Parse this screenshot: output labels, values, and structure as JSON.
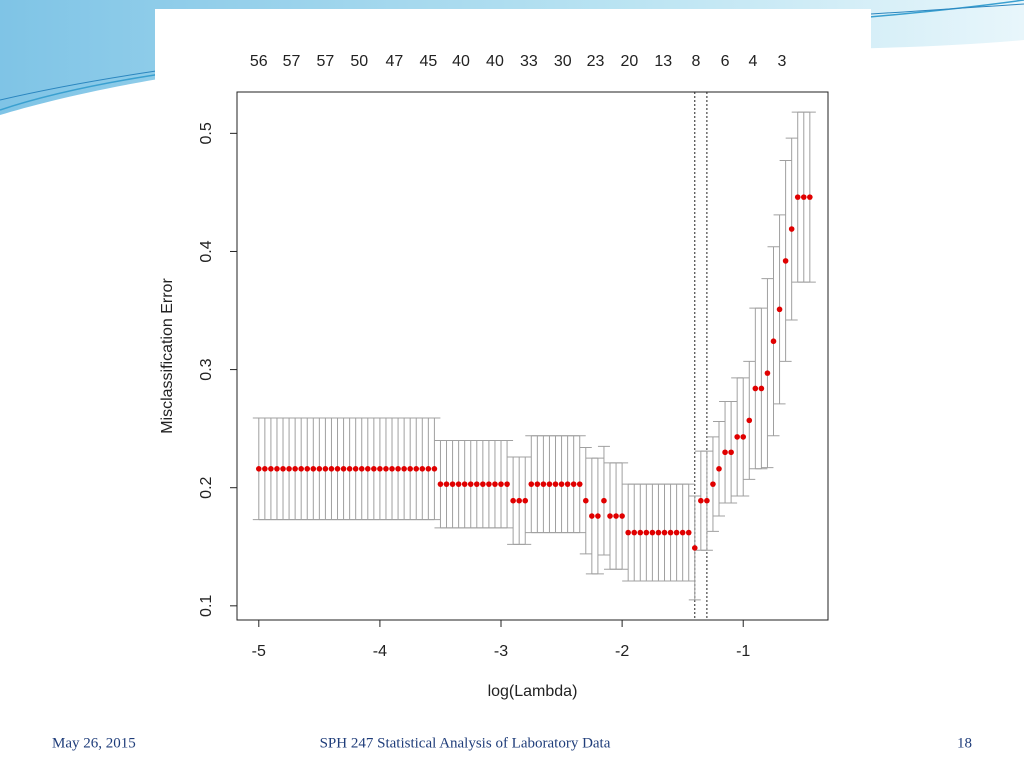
{
  "slide": {
    "footer_date": "May 26, 2015",
    "footer_text": "SPH 247 Statistical Analysis of Laboratory Data",
    "page_number": "18"
  },
  "chart_data": {
    "type": "errorbar",
    "x_label": "log(Lambda)",
    "y_label": "Misclassification Error",
    "xlim": [
      -5.18,
      -0.3
    ],
    "ylim": [
      0.088,
      0.535
    ],
    "xticks": [
      -5,
      -4,
      -3,
      -2,
      -1
    ],
    "yticks": [
      0.1,
      0.2,
      0.3,
      0.4,
      0.5
    ],
    "top_ticks": [
      {
        "value": -5,
        "label": "56"
      },
      {
        "value": -4.73,
        "label": "57"
      },
      {
        "value": -4.45,
        "label": "57"
      },
      {
        "value": -4.17,
        "label": "50"
      },
      {
        "value": -3.88,
        "label": "47"
      },
      {
        "value": -3.6,
        "label": "45"
      },
      {
        "value": -3.33,
        "label": "40"
      },
      {
        "value": -3.05,
        "label": "40"
      },
      {
        "value": -2.77,
        "label": "33"
      },
      {
        "value": -2.49,
        "label": "30"
      },
      {
        "value": -2.22,
        "label": "23"
      },
      {
        "value": -1.94,
        "label": "20"
      },
      {
        "value": -1.66,
        "label": "13"
      },
      {
        "value": -1.39,
        "label": "8"
      },
      {
        "value": -1.15,
        "label": "6"
      },
      {
        "value": -0.92,
        "label": "4"
      },
      {
        "value": -0.68,
        "label": "3"
      }
    ],
    "vlines": [
      -1.4,
      -1.3
    ],
    "point_color": "#e00000",
    "bar_color": "#a0a0a0",
    "x": [
      -5,
      -4.95,
      -4.9,
      -4.85,
      -4.8,
      -4.75,
      -4.7,
      -4.65,
      -4.6,
      -4.55,
      -4.5,
      -4.45,
      -4.4,
      -4.35,
      -4.3,
      -4.25,
      -4.2,
      -4.15,
      -4.1,
      -4.05,
      -4,
      -3.95,
      -3.9,
      -3.85,
      -3.8,
      -3.75,
      -3.7,
      -3.65,
      -3.6,
      -3.55,
      -3.5,
      -3.45,
      -3.4,
      -3.35,
      -3.3,
      -3.25,
      -3.2,
      -3.15,
      -3.1,
      -3.05,
      -3,
      -2.95,
      -2.9,
      -2.85,
      -2.8,
      -2.75,
      -2.7,
      -2.65,
      -2.6,
      -2.55,
      -2.5,
      -2.45,
      -2.4,
      -2.35,
      -2.3,
      -2.25,
      -2.2,
      -2.15,
      -2.1,
      -2.05,
      -2,
      -1.95,
      -1.9,
      -1.85,
      -1.8,
      -1.75,
      -1.7,
      -1.65,
      -1.6,
      -1.55,
      -1.5,
      -1.45,
      -1.4,
      -1.35,
      -1.3,
      -1.25,
      -1.2,
      -1.15,
      -1.1,
      -1.05,
      -1,
      -0.95,
      -0.9,
      -0.85,
      -0.8,
      -0.75,
      -0.7,
      -0.65,
      -0.6,
      -0.55,
      -0.5,
      -0.45
    ],
    "values": [
      0.216,
      0.216,
      0.216,
      0.216,
      0.216,
      0.216,
      0.216,
      0.216,
      0.216,
      0.216,
      0.216,
      0.216,
      0.216,
      0.216,
      0.216,
      0.216,
      0.216,
      0.216,
      0.216,
      0.216,
      0.216,
      0.216,
      0.216,
      0.216,
      0.216,
      0.216,
      0.216,
      0.216,
      0.216,
      0.216,
      0.203,
      0.203,
      0.203,
      0.203,
      0.203,
      0.203,
      0.203,
      0.203,
      0.203,
      0.203,
      0.203,
      0.203,
      0.189,
      0.189,
      0.189,
      0.203,
      0.203,
      0.203,
      0.203,
      0.203,
      0.203,
      0.203,
      0.203,
      0.203,
      0.189,
      0.176,
      0.176,
      0.189,
      0.176,
      0.176,
      0.176,
      0.162,
      0.162,
      0.162,
      0.162,
      0.162,
      0.162,
      0.162,
      0.162,
      0.162,
      0.162,
      0.162,
      0.149,
      0.189,
      0.189,
      0.203,
      0.216,
      0.23,
      0.23,
      0.243,
      0.243,
      0.257,
      0.284,
      0.284,
      0.297,
      0.324,
      0.351,
      0.392,
      0.419,
      0.446,
      0.446,
      0.446
    ],
    "errors": [
      0.043,
      0.043,
      0.043,
      0.043,
      0.043,
      0.043,
      0.043,
      0.043,
      0.043,
      0.043,
      0.043,
      0.043,
      0.043,
      0.043,
      0.043,
      0.043,
      0.043,
      0.043,
      0.043,
      0.043,
      0.043,
      0.043,
      0.043,
      0.043,
      0.043,
      0.043,
      0.043,
      0.043,
      0.043,
      0.043,
      0.037,
      0.037,
      0.037,
      0.037,
      0.037,
      0.037,
      0.037,
      0.037,
      0.037,
      0.037,
      0.037,
      0.037,
      0.037,
      0.037,
      0.037,
      0.041,
      0.041,
      0.041,
      0.041,
      0.041,
      0.041,
      0.041,
      0.041,
      0.041,
      0.045,
      0.049,
      0.049,
      0.046,
      0.045,
      0.045,
      0.045,
      0.041,
      0.041,
      0.041,
      0.041,
      0.041,
      0.041,
      0.041,
      0.041,
      0.041,
      0.041,
      0.041,
      0.044,
      0.042,
      0.042,
      0.04,
      0.04,
      0.043,
      0.043,
      0.05,
      0.05,
      0.05,
      0.068,
      0.068,
      0.08,
      0.08,
      0.08,
      0.085,
      0.077,
      0.072,
      0.072,
      0.072
    ]
  }
}
